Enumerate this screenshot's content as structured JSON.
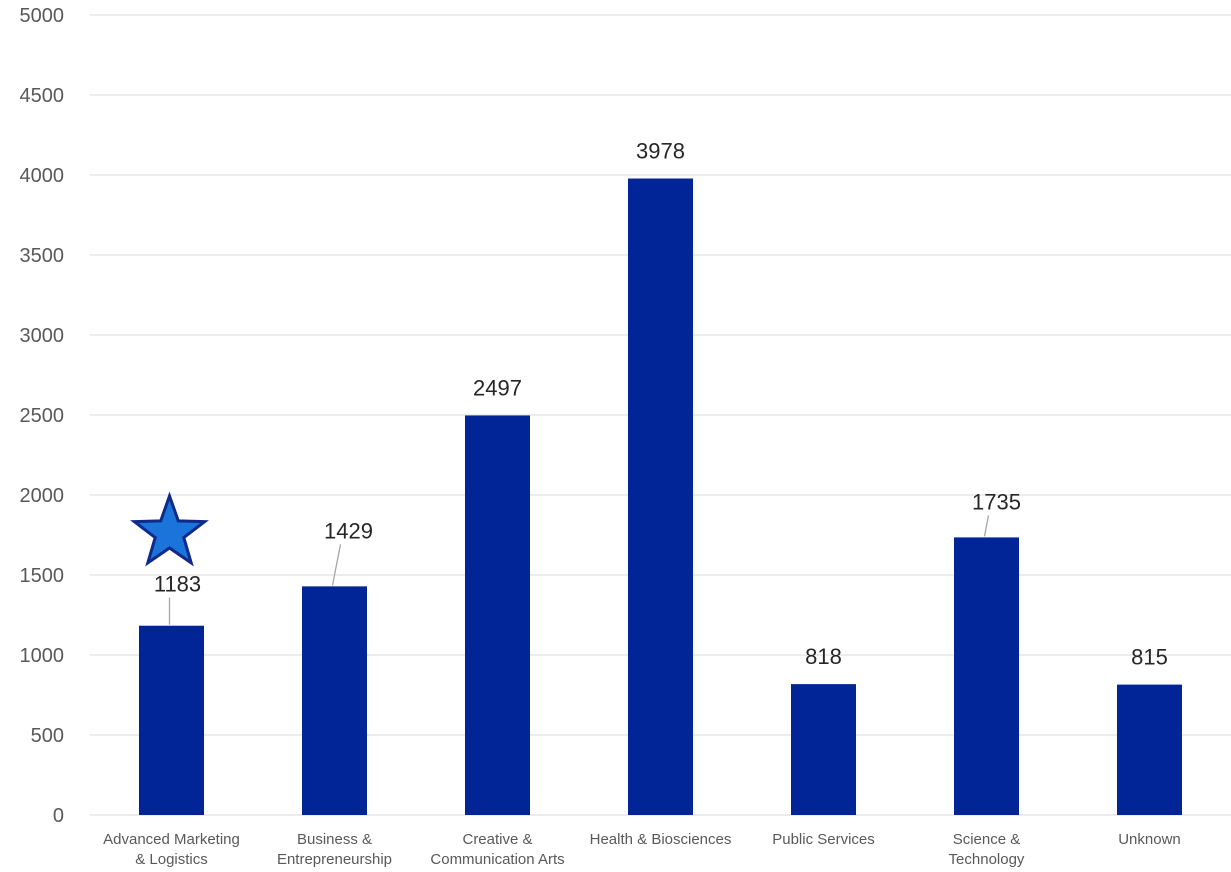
{
  "chart_data": {
    "type": "bar",
    "categories": [
      [
        "Advanced Marketing",
        "& Logistics"
      ],
      [
        "Business &",
        "Entrepreneurship"
      ],
      [
        "Creative &",
        "Communication Arts"
      ],
      [
        "Health & Biosciences"
      ],
      [
        "Public Services"
      ],
      [
        "Science &",
        "Technology"
      ],
      [
        "Unknown"
      ]
    ],
    "values": [
      1183,
      1429,
      2497,
      3978,
      818,
      1735,
      815
    ],
    "data_labels": [
      "1183",
      "1429",
      "2497",
      "3978",
      "818",
      "1735",
      "815"
    ],
    "ylim": [
      0,
      5000
    ],
    "yticks": [
      0,
      500,
      1000,
      1500,
      2000,
      2500,
      3000,
      3500,
      4000,
      4500,
      5000
    ],
    "ytick_labels": [
      "0",
      "500",
      "1000",
      "1500",
      "2000",
      "2500",
      "3000",
      "3500",
      "4000",
      "4500",
      "5000"
    ],
    "grid": true,
    "highlight_index": 0,
    "highlight_marker": "star-icon",
    "colors": {
      "bar": "#012596",
      "grid": "#d9d9d9",
      "star_fill": "#1a74d9",
      "star_stroke": "#0f2a8a",
      "leader": "#a6a6a6"
    }
  }
}
